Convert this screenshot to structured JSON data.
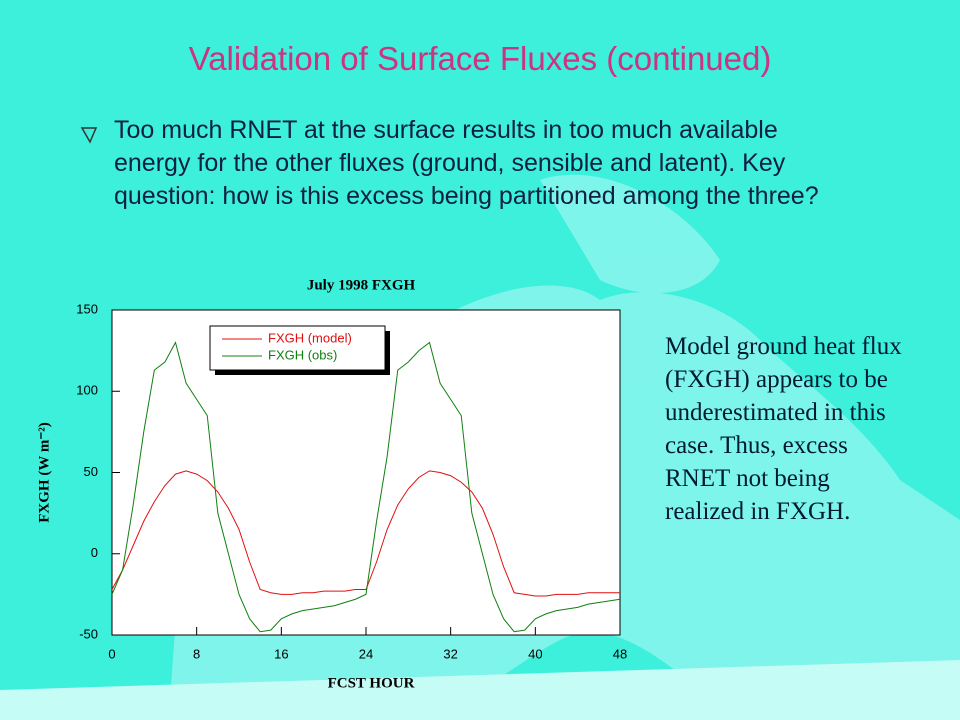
{
  "title": "Validation of Surface Fluxes (continued)",
  "bullet": "Too much RNET at the surface results in too much available energy for the other fluxes (ground, sensible and latent).  Key question:  how is this excess being partitioned among the three?",
  "side_note": "Model ground heat flux (FXGH) appears to be underestimated in this case.  Thus, excess RNET not being realized in FXGH.",
  "chart_data": {
    "type": "line",
    "title": "July 1998 FXGH",
    "x_label": "FCST HOUR",
    "y_label": "FXGH (W m⁻²)",
    "x": [
      0,
      1,
      2,
      3,
      4,
      5,
      6,
      7,
      8,
      9,
      10,
      11,
      12,
      13,
      14,
      15,
      16,
      17,
      18,
      19,
      20,
      21,
      22,
      23,
      24,
      25,
      26,
      27,
      28,
      29,
      30,
      31,
      32,
      33,
      34,
      35,
      36,
      37,
      38,
      39,
      40,
      41,
      42,
      43,
      44,
      45,
      46,
      47,
      48
    ],
    "series": [
      {
        "name": "FXGH (model)",
        "color": "#e01010",
        "values": [
          -22,
          -10,
          5,
          20,
          32,
          42,
          49,
          51,
          49,
          45,
          38,
          28,
          15,
          -5,
          -22,
          -24,
          -25,
          -25,
          -24,
          -24,
          -23,
          -23,
          -23,
          -22,
          -22,
          -5,
          15,
          30,
          40,
          47,
          51,
          50,
          48,
          44,
          38,
          28,
          12,
          -8,
          -24,
          -25,
          -26,
          -26,
          -25,
          -25,
          -25,
          -24,
          -24,
          -24,
          -24
        ]
      },
      {
        "name": "FXGH (obs)",
        "color": "#108010",
        "values": [
          -25,
          -10,
          30,
          75,
          113,
          118,
          130,
          105,
          95,
          85,
          25,
          0,
          -25,
          -40,
          -48,
          -47,
          -40,
          -37,
          -35,
          -34,
          -33,
          -32,
          -30,
          -28,
          -25,
          20,
          60,
          113,
          118,
          125,
          130,
          105,
          95,
          85,
          25,
          0,
          -25,
          -40,
          -48,
          -47,
          -40,
          -37,
          -35,
          -34,
          -33,
          -31,
          -30,
          -29,
          -28
        ]
      }
    ],
    "xlim": [
      0,
      48
    ],
    "xticks": [
      0,
      8,
      16,
      24,
      32,
      40,
      48
    ],
    "ylim": [
      -50,
      150
    ],
    "yticks": [
      -50,
      0,
      50,
      100,
      150
    ],
    "legend": "upper-left"
  }
}
